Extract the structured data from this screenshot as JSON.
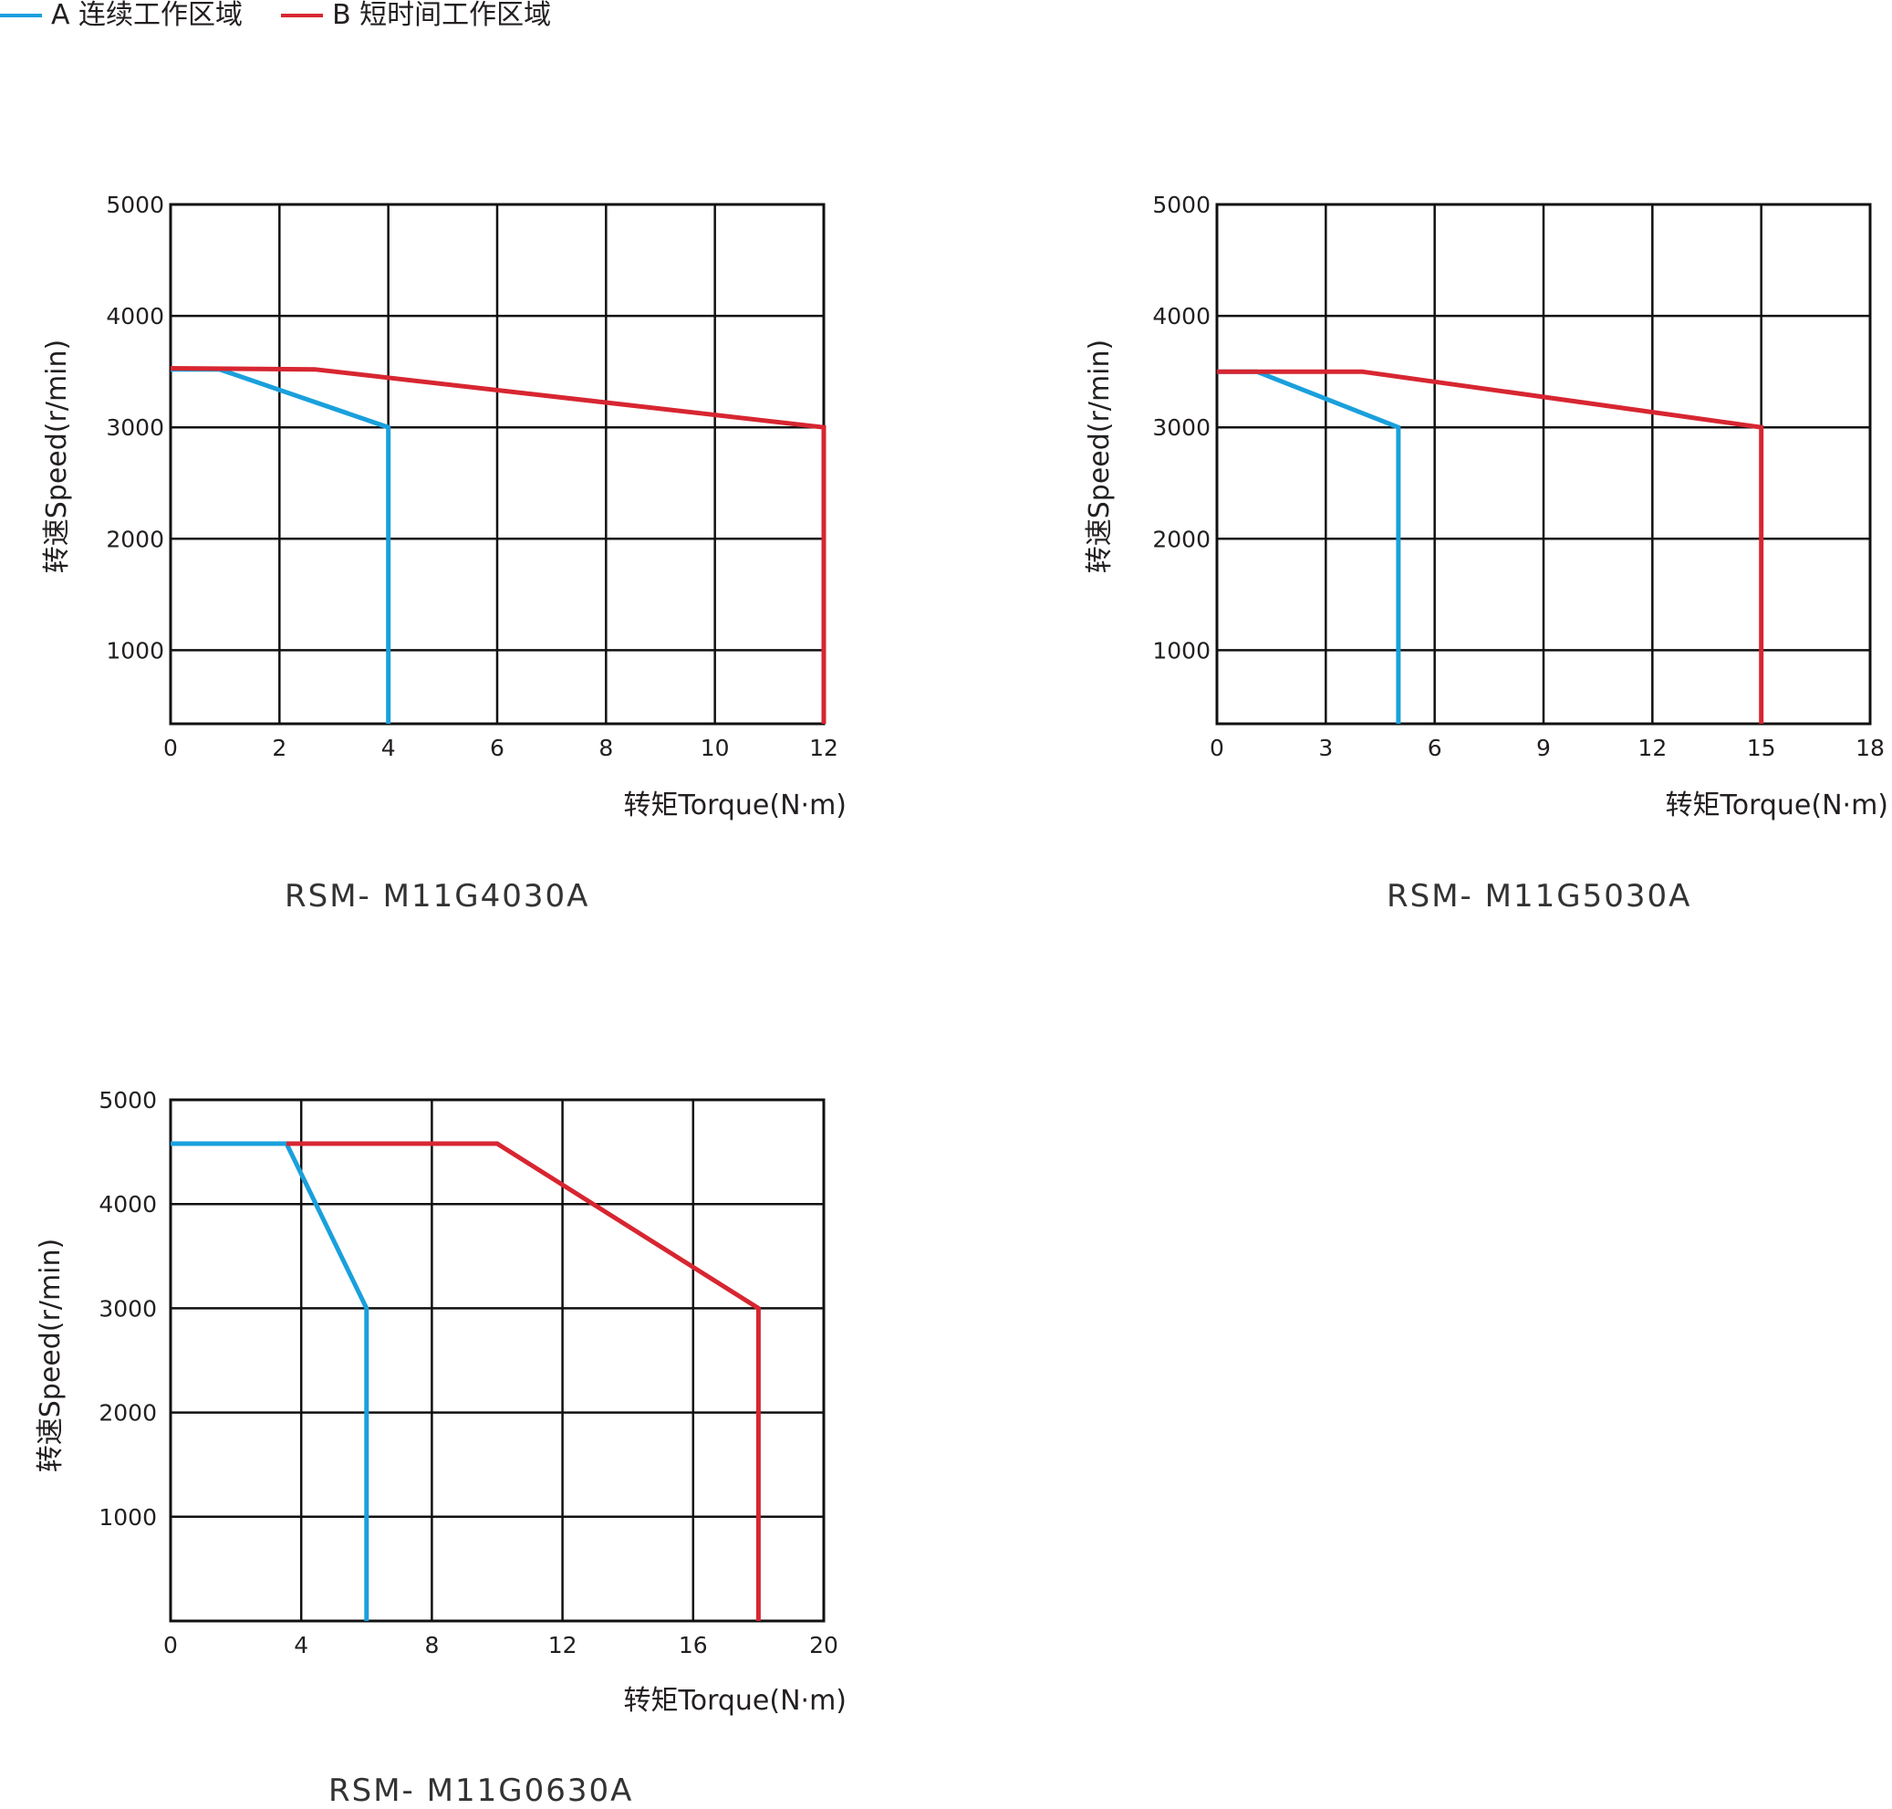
{
  "legend": {
    "items": [
      {
        "label": "A 连续工作区域",
        "color": "#1aa0dc"
      },
      {
        "label": "B 短时间工作区域",
        "color": "#d72631"
      }
    ]
  },
  "chart_data": [
    {
      "type": "line",
      "title": "RSM- M11G4030A",
      "xlabel": "转矩Torque(N·m)",
      "ylabel": "转速Speed(r/min)",
      "xlim": [
        0,
        12
      ],
      "ylim": [
        340,
        5000
      ],
      "x_ticks": [
        0,
        2,
        4,
        6,
        8,
        10,
        12
      ],
      "x_tick_labels": [
        "0",
        "2",
        "4",
        "6",
        "8",
        "10",
        "12"
      ],
      "y_ticks": [
        1000,
        2000,
        3000,
        4000,
        5000
      ],
      "y_tick_labels": [
        "1000",
        "2000",
        "3000",
        "4000",
        "5000"
      ],
      "grid": true,
      "series": [
        {
          "name": "A 连续工作区域",
          "color": "#1aa0dc",
          "points": [
            [
              0,
              3520
            ],
            [
              0.9,
              3520
            ],
            [
              4,
              3000
            ],
            [
              4,
              340
            ]
          ]
        },
        {
          "name": "B 短时间工作区域",
          "color": "#d72631",
          "points": [
            [
              0,
              3530
            ],
            [
              2.65,
              3520
            ],
            [
              12,
              3000
            ],
            [
              12,
              340
            ]
          ]
        }
      ]
    },
    {
      "type": "line",
      "title": "RSM- M11G5030A",
      "xlabel": "转矩Torque(N·m)",
      "ylabel": "转速Speed(r/min)",
      "xlim": [
        0,
        18
      ],
      "ylim": [
        340,
        5000
      ],
      "x_ticks": [
        0,
        3,
        6,
        9,
        12,
        15,
        18
      ],
      "x_tick_labels": [
        "0",
        "3",
        "6",
        "9",
        "12",
        "15",
        "18"
      ],
      "y_ticks": [
        1000,
        2000,
        3000,
        4000,
        5000
      ],
      "y_tick_labels": [
        "1000",
        "2000",
        "3000",
        "4000",
        "5000"
      ],
      "grid": true,
      "series": [
        {
          "name": "A 连续工作区域",
          "color": "#1aa0dc",
          "points": [
            [
              0,
              3500
            ],
            [
              1.1,
              3500
            ],
            [
              5,
              3000
            ],
            [
              5,
              340
            ]
          ]
        },
        {
          "name": "B 短时间工作区域",
          "color": "#d72631",
          "points": [
            [
              0,
              3500
            ],
            [
              4,
              3500
            ],
            [
              15,
              3000
            ],
            [
              15,
              340
            ]
          ]
        }
      ]
    },
    {
      "type": "line",
      "title": "RSM- M11G0630A",
      "xlabel": "转矩Torque(N·m)",
      "ylabel": "转速Speed(r/min)",
      "xlim": [
        0,
        20
      ],
      "ylim": [
        0,
        5000
      ],
      "x_ticks": [
        0,
        4,
        8,
        12,
        16,
        20
      ],
      "x_tick_labels": [
        "0",
        "4",
        "8",
        "12",
        "16",
        "20"
      ],
      "y_ticks": [
        1000,
        2000,
        3000,
        4000,
        5000
      ],
      "y_tick_labels": [
        "1000",
        "2000",
        "3000",
        "4000",
        "5000"
      ],
      "grid": true,
      "series": [
        {
          "name": "A 连续工作区域",
          "color": "#1aa0dc",
          "points": [
            [
              0,
              4580
            ],
            [
              3.55,
              4580
            ],
            [
              6,
              3000
            ],
            [
              6,
              0
            ]
          ]
        },
        {
          "name": "B 短时间工作区域",
          "color": "#d72631",
          "points": [
            [
              3.55,
              4580
            ],
            [
              10,
              4580
            ],
            [
              18,
              3000
            ],
            [
              18,
              0
            ]
          ]
        }
      ]
    }
  ]
}
